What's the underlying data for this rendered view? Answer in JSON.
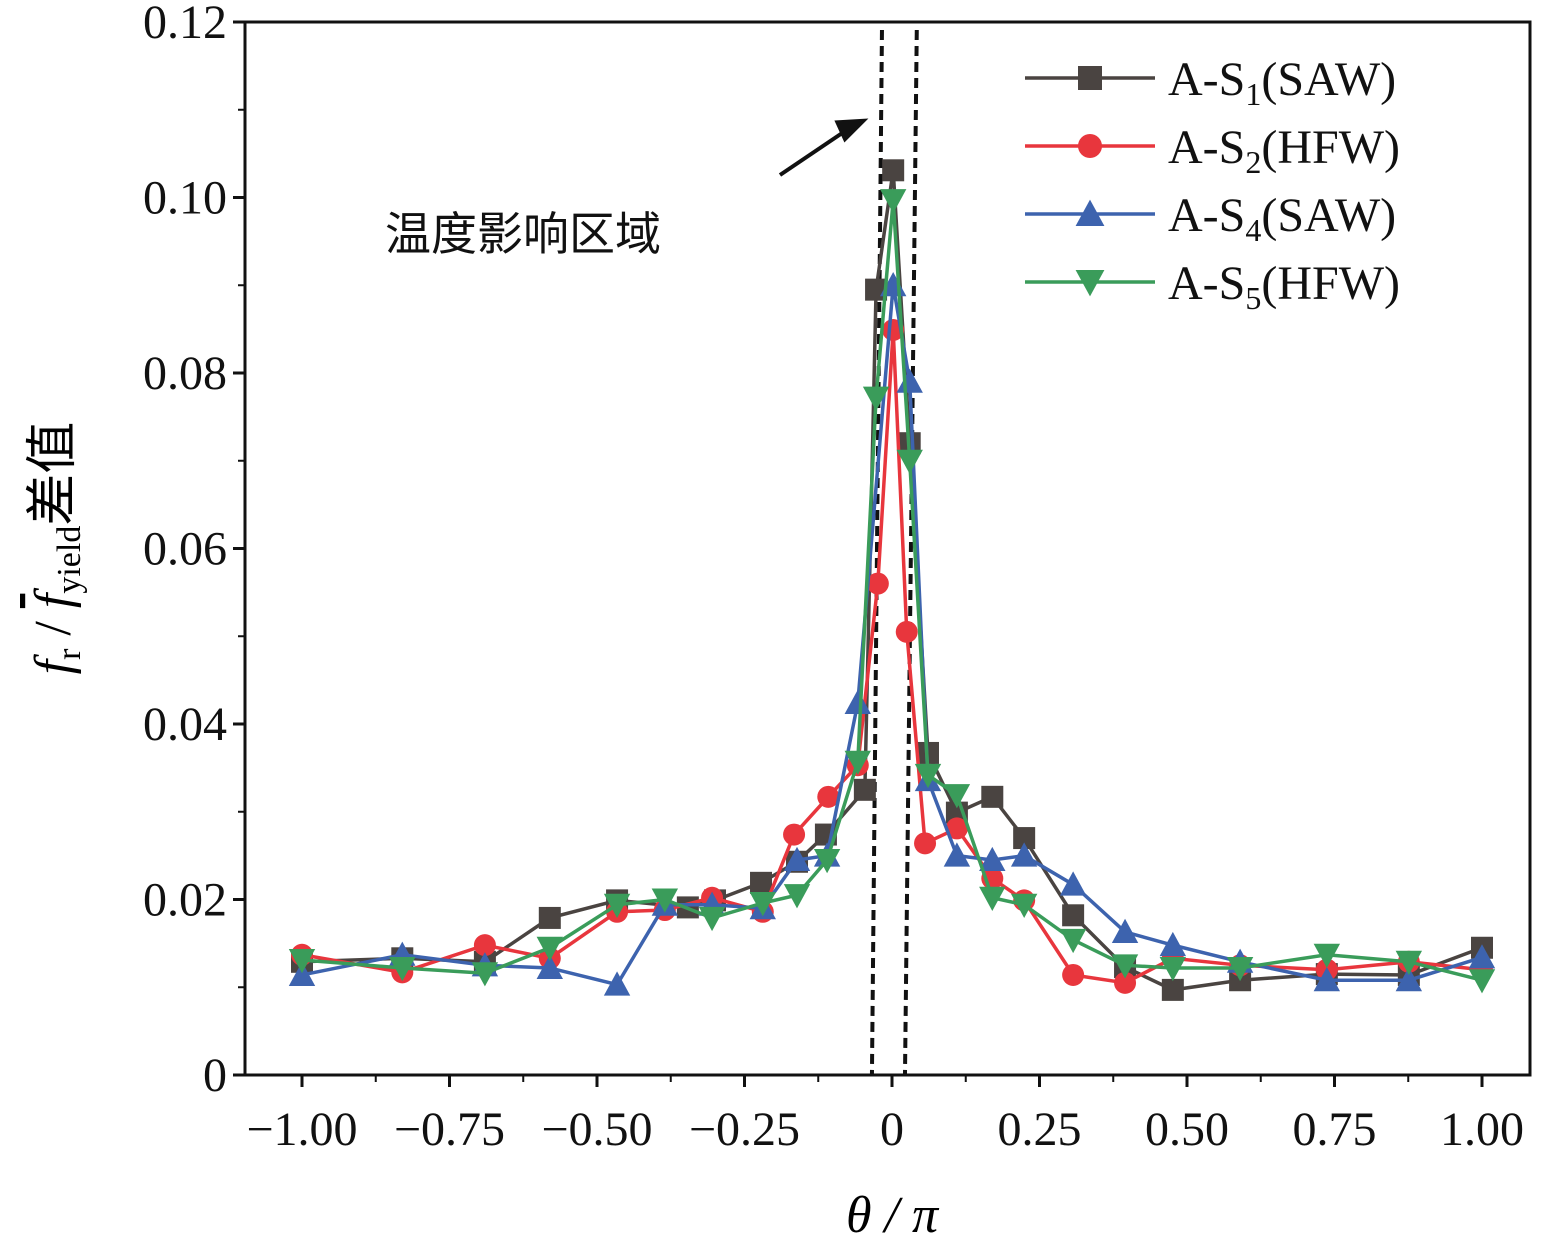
{
  "chart_data": {
    "type": "line",
    "title": "",
    "xlabel": {
      "main": "θ / π"
    },
    "ylabel": {
      "f": "f",
      "sub_r": "r",
      "sep": " / ",
      "fbar": "f",
      "sub_yield": "yield",
      "suffix": "差值"
    },
    "xlim": [
      -1.0,
      1.0
    ],
    "ylim": [
      0,
      0.12
    ],
    "xticks": [
      -1.0,
      -0.75,
      -0.5,
      -0.25,
      0,
      0.25,
      0.5,
      0.75,
      1.0
    ],
    "xtick_labels": [
      "−1.00",
      "−0.75",
      "−0.50",
      "−0.25",
      "0",
      "0.25",
      "0.50",
      "0.75",
      "1.00"
    ],
    "yticks": [
      0,
      0.02,
      0.04,
      0.06,
      0.08,
      0.1,
      0.12
    ],
    "ytick_labels": [
      "0",
      "0.02",
      "0.04",
      "0.06",
      "0.08",
      "0.10",
      "0.12"
    ],
    "grid": false,
    "legend_position": "top-right",
    "annotation": {
      "text": "温度影响区域",
      "arrow_to": [
        -0.04,
        0.109
      ]
    },
    "dashed_bounds": [
      {
        "x_bottom": -0.034,
        "x_top": -0.017
      },
      {
        "x_bottom": 0.022,
        "x_top": 0.042
      }
    ],
    "series": [
      {
        "name": {
          "prefix": "A-S",
          "sub": "1",
          "suffix": "(SAW)"
        },
        "color": "#4a4441",
        "marker": "square",
        "x": [
          -1.0,
          -0.83,
          -0.69,
          -0.58,
          -0.466,
          -0.346,
          -0.3,
          -0.222,
          -0.161,
          -0.112,
          -0.046,
          -0.027,
          0.002,
          0.03,
          0.061,
          0.11,
          0.17,
          0.224,
          0.307,
          0.395,
          0.476,
          0.59,
          0.737,
          0.876,
          1.0
        ],
        "y": [
          0.0129,
          0.0133,
          0.0129,
          0.0179,
          0.0199,
          0.0191,
          0.0199,
          0.0219,
          0.0243,
          0.0274,
          0.0325,
          0.0895,
          0.1031,
          0.072,
          0.0367,
          0.0299,
          0.0317,
          0.027,
          0.0182,
          0.0123,
          0.0097,
          0.0108,
          0.0115,
          0.0114,
          0.0145
        ]
      },
      {
        "name": {
          "prefix": "A-S",
          "sub": "2",
          "suffix": "(HFW)"
        },
        "color": "#e8363d",
        "marker": "circle",
        "x": [
          -1.0,
          -0.83,
          -0.69,
          -0.58,
          -0.466,
          -0.385,
          -0.305,
          -0.219,
          -0.166,
          -0.108,
          -0.058,
          -0.024,
          0.002,
          0.025,
          0.056,
          0.11,
          0.17,
          0.224,
          0.307,
          0.395,
          0.476,
          0.59,
          0.737,
          0.876,
          1.0
        ],
        "y": [
          0.0137,
          0.0117,
          0.0148,
          0.0133,
          0.0186,
          0.0188,
          0.0202,
          0.0186,
          0.0274,
          0.0317,
          0.0353,
          0.056,
          0.0849,
          0.0505,
          0.0264,
          0.0281,
          0.0224,
          0.0199,
          0.0114,
          0.0105,
          0.0133,
          0.0125,
          0.012,
          0.0129,
          0.012
        ]
      },
      {
        "name": {
          "prefix": "A-S",
          "sub": "4",
          "suffix": "(SAW)"
        },
        "color": "#3d63ae",
        "marker": "triangle-up",
        "x": [
          -1.0,
          -0.83,
          -0.69,
          -0.58,
          -0.466,
          -0.385,
          -0.305,
          -0.219,
          -0.161,
          -0.11,
          -0.058,
          0.002,
          0.03,
          0.061,
          0.11,
          0.17,
          0.224,
          0.307,
          0.395,
          0.476,
          0.59,
          0.737,
          0.876,
          1.0
        ],
        "y": [
          0.0114,
          0.0137,
          0.0125,
          0.0122,
          0.0103,
          0.0194,
          0.0194,
          0.019,
          0.0245,
          0.025,
          0.0424,
          0.09,
          0.079,
          0.0336,
          0.025,
          0.0245,
          0.025,
          0.0217,
          0.0163,
          0.0148,
          0.0129,
          0.0108,
          0.0108,
          0.0134
        ]
      },
      {
        "name": {
          "prefix": "A-S",
          "sub": "5",
          "suffix": "(HFW)"
        },
        "color": "#3a9c5a",
        "marker": "triangle-down",
        "x": [
          -1.0,
          -0.83,
          -0.69,
          -0.58,
          -0.466,
          -0.385,
          -0.305,
          -0.219,
          -0.161,
          -0.11,
          -0.058,
          -0.027,
          0.002,
          0.03,
          0.061,
          0.11,
          0.17,
          0.224,
          0.307,
          0.395,
          0.476,
          0.59,
          0.737,
          0.876,
          1.0
        ],
        "y": [
          0.0131,
          0.0122,
          0.0116,
          0.0145,
          0.0194,
          0.02,
          0.0179,
          0.0196,
          0.0205,
          0.0245,
          0.0357,
          0.0772,
          0.0997,
          0.07,
          0.0342,
          0.0319,
          0.0202,
          0.0194,
          0.0154,
          0.0125,
          0.0122,
          0.0122,
          0.0137,
          0.0129,
          0.0108
        ]
      }
    ]
  }
}
